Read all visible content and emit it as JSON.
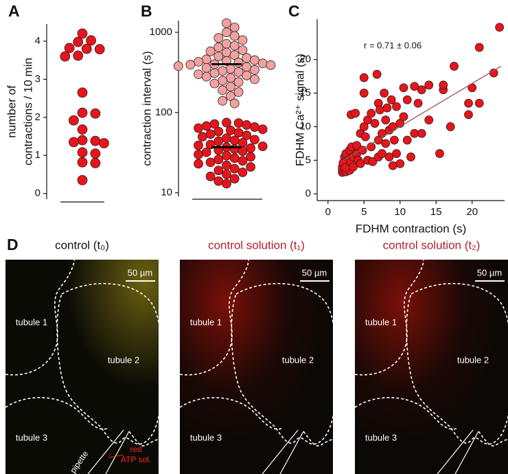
{
  "chart_data": [
    {
      "type": "strip",
      "panel_label": "A",
      "ylabel": [
        "number of",
        "contractions / 10 min"
      ],
      "ylim": [
        -0.15,
        4.45
      ],
      "yticks": [
        0,
        1,
        2,
        3,
        4
      ],
      "series": [
        {
          "color": "#e8141b",
          "values": [
            4.2,
            4.02,
            3.98,
            3.82,
            3.8,
            3.79,
            3.62,
            3.6,
            2.65,
            2.12,
            2.1,
            1.92,
            1.68,
            1.4,
            1.38,
            1.35,
            1.32,
            1.08,
            1.05,
            0.82,
            0.8,
            0.35
          ]
        }
      ]
    },
    {
      "type": "strip",
      "panel_label": "B",
      "ylabel": [
        "contraction interval (s)"
      ],
      "log": true,
      "ylim": [
        9,
        1400
      ],
      "yticks": [
        10,
        100,
        1000
      ],
      "series": [
        {
          "color": "#f4a0a0",
          "median": 400,
          "values": [
            1300,
            1150,
            1000,
            900,
            850,
            800,
            720,
            680,
            650,
            600,
            580,
            560,
            520,
            500,
            480,
            460,
            450,
            440,
            430,
            420,
            410,
            400,
            395,
            390,
            380,
            370,
            360,
            350,
            340,
            330,
            320,
            310,
            300,
            290,
            280,
            270,
            260,
            250,
            240,
            230,
            210,
            190,
            180,
            160,
            140,
            130
          ]
        },
        {
          "color": "#e8141b",
          "median": 37,
          "values": [
            75,
            74,
            72,
            70,
            68,
            66,
            64,
            62,
            60,
            58,
            56,
            54,
            52,
            50,
            48,
            46,
            45,
            44,
            42,
            40,
            39,
            38,
            37,
            36,
            35,
            34,
            33,
            32,
            30,
            29,
            28,
            27,
            26,
            25,
            24,
            23,
            22,
            21,
            20,
            19,
            18,
            17,
            16,
            15,
            14,
            13
          ]
        }
      ]
    },
    {
      "type": "scatter",
      "panel_label": "C",
      "xlabel": "FDHM contraction (s)",
      "ylabel": "FDHM Ca²⁺ signal (s)",
      "annotation": "r = 0.71 ± 0.06",
      "xlim": [
        -1.5,
        24.5
      ],
      "xticks": [
        0,
        5,
        10,
        15,
        20
      ],
      "ylim": [
        -1,
        26
      ],
      "yticks": [
        0,
        5,
        10,
        15,
        20
      ],
      "fit": {
        "color": "#a05050",
        "x": [
          2,
          24
        ],
        "y": [
          4.9,
          19
        ]
      },
      "series": [
        {
          "color": "#e8141b",
          "x": [
            2,
            2,
            2,
            2.2,
            2.3,
            2.5,
            2.5,
            2.6,
            2.8,
            3,
            3,
            3,
            3.2,
            3.3,
            3.5,
            3.5,
            3.8,
            4,
            4,
            4.2,
            4.5,
            4.5,
            4.8,
            5,
            5,
            5,
            5.2,
            5.5,
            5.5,
            6,
            6,
            6.2,
            6.5,
            6.8,
            7,
            7,
            7,
            7.2,
            7.5,
            7.5,
            7.8,
            8,
            8,
            8.2,
            8.5,
            8.5,
            8.8,
            9,
            9,
            9.2,
            9.5,
            9.5,
            10,
            10,
            10.5,
            10.5,
            11,
            11,
            11.5,
            12,
            12,
            12.5,
            13,
            13,
            14,
            14,
            15.5,
            16,
            16,
            17,
            17.5,
            19.5,
            19.5,
            20,
            21,
            21,
            23,
            23.8,
            2.1,
            2.4
          ],
          "values": [
            3.2,
            3.6,
            4,
            4.5,
            5.5,
            3.3,
            6,
            4.2,
            5,
            3.5,
            4.8,
            6.5,
            11.8,
            7,
            4,
            5.5,
            12,
            6,
            7.2,
            5,
            4.5,
            9,
            6.5,
            15,
            17.3,
            10,
            8.5,
            5,
            11,
            7,
            12,
            4.8,
            10.5,
            17.8,
            5.5,
            8,
            13.5,
            12.5,
            9,
            6,
            15,
            11,
            7.5,
            12.8,
            9.5,
            5.5,
            14,
            10,
            4.2,
            8,
            13,
            6,
            10.5,
            4.5,
            15.8,
            11.5,
            8,
            14,
            5.5,
            16,
            9,
            13.5,
            15.5,
            9,
            16.2,
            11,
            6,
            15.5,
            16.2,
            10,
            19,
            11.8,
            13.5,
            15.8,
            13.5,
            21.8,
            18,
            24.8,
            4.6,
            3.9
          ]
        }
      ]
    }
  ],
  "panel_d": {
    "panel_label": "D",
    "images": [
      {
        "title": "control (t₀)",
        "title_color": "#111111",
        "scale_bar": "50 µm",
        "labels": [
          "tubule 1",
          "tubule 2",
          "tubule 3"
        ]
      },
      {
        "title": "control solution (t₁)",
        "title_color": "#b0202a",
        "scale_bar": "50 µm",
        "labels": [
          "tubule 1",
          "tubule 2",
          "tubule 3"
        ]
      },
      {
        "title": "control solution (t₂)",
        "title_color": "#b0202a",
        "scale_bar": "50 µm",
        "labels": [
          "tubule 1",
          "tubule 2",
          "tubule 3"
        ]
      }
    ],
    "pipette_labels": [
      "pipette",
      "red",
      "ATP sol."
    ]
  }
}
